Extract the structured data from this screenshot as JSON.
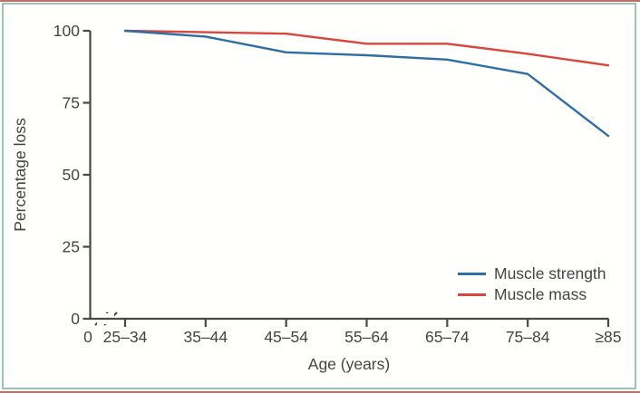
{
  "figure": {
    "background_color": "#fdfdfb",
    "frame_border_color": "#9cc2ba",
    "page_rule_color": "#b0574f"
  },
  "chart_data": {
    "type": "line",
    "title": "",
    "xlabel": "Age (years)",
    "ylabel": "Percentage loss",
    "categories": [
      "25–34",
      "35–44",
      "45–54",
      "55–64",
      "65–74",
      "75–84",
      "≥85"
    ],
    "x_origin_label": "0",
    "axis_break_before_first_category": true,
    "yticks": [
      0,
      25,
      50,
      75,
      100
    ],
    "ylim": [
      0,
      100
    ],
    "grid": false,
    "axis_color": "#4a4643",
    "text_color": "#474340",
    "legend_position": "lower right",
    "series": [
      {
        "name": "Muscle strength",
        "color": "#2e6ea4",
        "values": [
          100,
          98,
          92.5,
          91.5,
          90,
          85,
          63.5
        ]
      },
      {
        "name": "Muscle mass",
        "color": "#d8463c",
        "values": [
          100,
          99.5,
          99,
          95.5,
          95.5,
          92,
          88
        ]
      }
    ]
  }
}
